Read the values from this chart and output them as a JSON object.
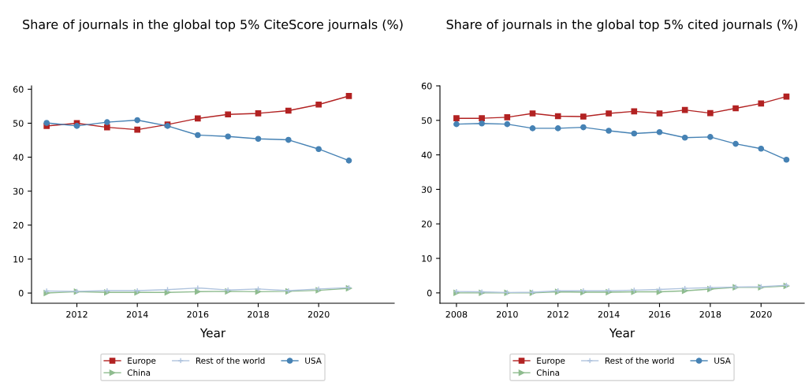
{
  "chart_data": [
    {
      "type": "line",
      "title": "Share of journals in the global top 5% CiteScore journals (%)",
      "xlabel": "Year",
      "x": [
        2011,
        2012,
        2013,
        2014,
        2015,
        2016,
        2017,
        2018,
        2019,
        2020,
        2021
      ],
      "series": [
        {
          "name": "Europe",
          "color": "#b22222",
          "marker": "square",
          "values": [
            49.2,
            50.0,
            48.8,
            48.1,
            49.6,
            51.4,
            52.6,
            52.9,
            53.7,
            55.5,
            58.0
          ]
        },
        {
          "name": "China",
          "color": "#8fbc8f",
          "marker": "triangle",
          "values": [
            0.0,
            0.4,
            0.2,
            0.2,
            0.2,
            0.4,
            0.5,
            0.4,
            0.5,
            0.8,
            1.4
          ]
        },
        {
          "name": "Rest of the world",
          "color": "#b0c4de",
          "marker": "cross",
          "values": [
            0.6,
            0.5,
            0.7,
            0.7,
            1.0,
            1.5,
            0.9,
            1.2,
            0.7,
            1.2,
            1.6
          ]
        },
        {
          "name": "USA",
          "color": "#4682b4",
          "marker": "circle",
          "values": [
            50.1,
            49.2,
            50.3,
            50.9,
            49.2,
            46.5,
            46.1,
            45.4,
            45.1,
            42.4,
            39.0
          ]
        }
      ],
      "xlim": [
        2010.5,
        2022.5
      ],
      "xticks": [
        2012,
        2014,
        2016,
        2018,
        2020
      ],
      "ylim": [
        -3,
        61
      ],
      "yticks": [
        0,
        10,
        20,
        30,
        40,
        50,
        60
      ],
      "grid": false,
      "legend": "bottom",
      "line_style": "solid"
    },
    {
      "type": "line",
      "title": "Share of journals in the global top 5% cited journals (%)",
      "xlabel": "Year",
      "x": [
        2008,
        2009,
        2010,
        2011,
        2012,
        2013,
        2014,
        2015,
        2016,
        2017,
        2018,
        2019,
        2020,
        2021
      ],
      "series": [
        {
          "name": "Europe",
          "color": "#b22222",
          "marker": "square",
          "values": [
            50.6,
            50.6,
            50.9,
            52.0,
            51.2,
            51.1,
            52.0,
            52.6,
            52.0,
            53.0,
            52.1,
            53.5,
            54.9,
            56.9
          ]
        },
        {
          "name": "China",
          "color": "#8fbc8f",
          "marker": "triangle",
          "values": [
            0.0,
            0.0,
            0.0,
            0.0,
            0.3,
            0.2,
            0.2,
            0.3,
            0.3,
            0.6,
            1.1,
            1.6,
            1.6,
            2.0
          ]
        },
        {
          "name": "Rest of the world",
          "color": "#b0c4de",
          "marker": "cross",
          "values": [
            0.4,
            0.3,
            0.1,
            0.2,
            0.6,
            0.6,
            0.6,
            0.8,
            1.0,
            1.3,
            1.5,
            1.7,
            1.8,
            2.2
          ]
        },
        {
          "name": "USA",
          "color": "#4682b4",
          "marker": "circle",
          "values": [
            48.9,
            49.1,
            48.9,
            47.7,
            47.7,
            48.0,
            47.0,
            46.2,
            46.6,
            45.0,
            45.2,
            43.2,
            41.8,
            38.6
          ]
        }
      ],
      "xlim": [
        2007.35,
        2021.7
      ],
      "xticks": [
        2008,
        2010,
        2012,
        2014,
        2016,
        2018,
        2020
      ],
      "ylim": [
        -3,
        60
      ],
      "yticks": [
        0,
        10,
        20,
        30,
        40,
        50,
        60
      ],
      "grid": false,
      "legend": "bottom",
      "line_style": "solid"
    }
  ]
}
